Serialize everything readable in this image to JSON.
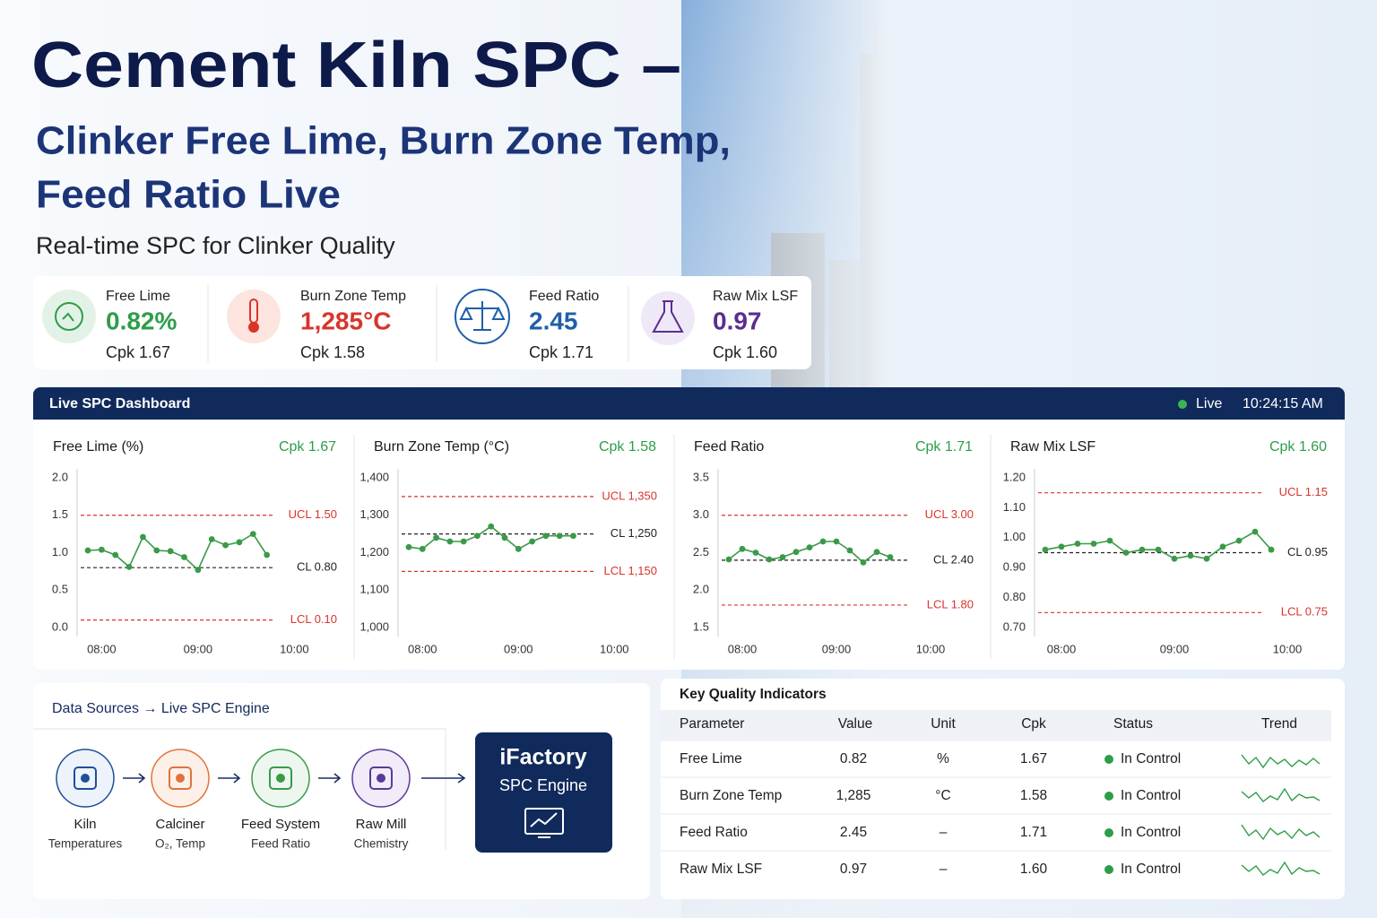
{
  "header": {
    "title": "Cement Kiln SPC –",
    "subtitle_lines": [
      "Clinker Free Lime, Burn Zone Temp,",
      "Feed Ratio Live"
    ],
    "tagline": "Real-time SPC for Clinker Quality"
  },
  "kpis": [
    {
      "label": "Free Lime",
      "value": "0.82%",
      "cpk": "Cpk 1.67",
      "color": "#2e9d4a"
    },
    {
      "label": "Burn Zone Temp",
      "value": "1,285°C",
      "cpk": "Cpk 1.58",
      "color": "#d9342b"
    },
    {
      "label": "Feed Ratio",
      "value": "2.45",
      "cpk": "Cpk 1.71",
      "color": "#1f5fa8"
    },
    {
      "label": "Raw Mix LSF",
      "value": "0.97",
      "cpk": "Cpk 1.60",
      "color": "#5b2d8e"
    }
  ],
  "dashboard": {
    "title": "Live SPC Dashboard",
    "status": "Live",
    "time": "10:24:15 AM"
  },
  "chart_data": [
    {
      "type": "line",
      "title": "Free Lime (%)",
      "cpk": "Cpk 1.67",
      "categories": [
        null,
        "08:00",
        null,
        null,
        null,
        null,
        null,
        null,
        "09:00",
        null,
        null,
        null,
        null,
        null,
        null,
        "10:00"
      ],
      "values": [
        1.03,
        1.04,
        0.97,
        0.81,
        1.21,
        1.03,
        1.02,
        0.94,
        0.77,
        1.18,
        1.1,
        1.14,
        1.25,
        0.97,
        null,
        null
      ],
      "color": "#3a9a48",
      "grid": false,
      "ylim": [
        0,
        2
      ],
      "yticks": [
        {
          "value": 0,
          "label": "0.0"
        },
        0.5,
        {
          "value": 1,
          "label": "1.0"
        },
        1.5,
        {
          "value": 2,
          "label": "2.0"
        }
      ],
      "limits": [
        {
          "value": 1.5,
          "label": "UCL 1.50",
          "color": "#d9342b"
        },
        {
          "value": 0.8,
          "label": "CL 0.80",
          "color": "#222222"
        },
        {
          "value": 0.1,
          "label": "LCL 0.10",
          "color": "#d9342b"
        }
      ]
    },
    {
      "type": "line",
      "title": "Burn Zone Temp (°C)",
      "cpk": "Cpk 1.58",
      "categories": [
        null,
        "08:00",
        null,
        null,
        null,
        null,
        null,
        null,
        "09:00",
        null,
        null,
        null,
        null,
        null,
        null,
        "10:00"
      ],
      "values": [
        1215,
        1210,
        1240,
        1230,
        1230,
        1245,
        1270,
        1240,
        1210,
        1230,
        1245,
        1245,
        1245,
        null,
        null,
        null
      ],
      "color": "#3a9a48",
      "grid": false,
      "ylim": [
        1000,
        1400
      ],
      "yticks": [
        {
          "value": 1000,
          "label": "1,000"
        },
        {
          "value": 1100,
          "label": "1,100"
        },
        {
          "value": 1200,
          "label": "1,200"
        },
        {
          "value": 1300,
          "label": "1,300"
        },
        {
          "value": 1400,
          "label": "1,400"
        }
      ],
      "limits": [
        {
          "value": 1350,
          "label": "UCL 1,350",
          "color": "#d9342b"
        },
        {
          "value": 1250,
          "label": "CL 1,250",
          "color": "#222222"
        },
        {
          "value": 1150,
          "label": "LCL 1,150",
          "color": "#d9342b"
        }
      ]
    },
    {
      "type": "line",
      "title": "Feed Ratio",
      "cpk": "Cpk 1.71",
      "categories": [
        null,
        "08:00",
        null,
        null,
        null,
        null,
        null,
        null,
        "09:00",
        null,
        null,
        null,
        null,
        null,
        null,
        "10:00"
      ],
      "values": [
        2.41,
        2.55,
        2.5,
        2.41,
        2.44,
        2.51,
        2.57,
        2.65,
        2.65,
        2.53,
        2.37,
        2.51,
        2.44,
        null,
        null,
        null
      ],
      "color": "#3a9a48",
      "grid": false,
      "ylim": [
        1.5,
        3.5
      ],
      "yticks": [
        1.5,
        {
          "value": 2,
          "label": "2.0"
        },
        2.5,
        {
          "value": 3,
          "label": "3.0"
        },
        3.5
      ],
      "limits": [
        {
          "value": 3,
          "label": "UCL 3.00",
          "color": "#d9342b"
        },
        {
          "value": 2.4,
          "label": "CL 2.40",
          "color": "#222222"
        },
        {
          "value": 1.8,
          "label": "LCL 1.80",
          "color": "#d9342b"
        }
      ]
    },
    {
      "type": "line",
      "title": "Raw Mix LSF",
      "cpk": "Cpk 1.60",
      "categories": [
        null,
        "08:00",
        null,
        null,
        null,
        null,
        null,
        null,
        "09:00",
        null,
        null,
        null,
        null,
        null,
        null,
        "10:00"
      ],
      "values": [
        0.96,
        0.97,
        0.98,
        0.98,
        0.99,
        0.95,
        0.96,
        0.96,
        0.93,
        0.94,
        0.93,
        0.97,
        0.99,
        1.02,
        0.96,
        null
      ],
      "color": "#3a9a48",
      "grid": false,
      "ylim": [
        0.7,
        1.2
      ],
      "yticks": [
        {
          "value": 0.7,
          "label": "0.70"
        },
        {
          "value": 0.8,
          "label": "0.80"
        },
        {
          "value": 0.9,
          "label": "0.90"
        },
        {
          "value": 1,
          "label": "1.00"
        },
        {
          "value": 1.1,
          "label": "1.10"
        },
        {
          "value": 1.2,
          "label": "1.20"
        }
      ],
      "limits": [
        {
          "value": 1.15,
          "label": "UCL 1.15",
          "color": "#d9342b"
        },
        {
          "value": 0.95,
          "label": "CL 0.95",
          "color": "#222222"
        },
        {
          "value": 0.75,
          "label": "LCL 0.75",
          "color": "#d9342b"
        }
      ]
    }
  ],
  "data_sources": {
    "title": "Data Sources → Live SPC Engine",
    "nodes": [
      {
        "name": "Kiln",
        "detail": "Temperatures"
      },
      {
        "name": "Calciner",
        "detail": "O₂, Temp"
      },
      {
        "name": "Feed System",
        "detail": "Feed Ratio"
      },
      {
        "name": "Raw Mill",
        "detail": "Chemistry"
      }
    ],
    "engine": {
      "name": "iFactory",
      "subtitle": "SPC Engine"
    }
  },
  "table": {
    "title": "Key Quality Indicators",
    "columns": [
      "Parameter",
      "Value",
      "Unit",
      "Cpk",
      "Status",
      "Trend"
    ],
    "rows": [
      [
        "Free Lime",
        "0.82",
        "%",
        "1.67",
        "In Control"
      ],
      [
        "Burn Zone Temp",
        "1,285",
        "°C",
        "1.58",
        "In Control"
      ],
      [
        "Feed Ratio",
        "2.45",
        "–",
        "1.71",
        "In Control"
      ],
      [
        "Raw Mix LSF",
        "0.97",
        "–",
        "1.60",
        "In Control"
      ]
    ]
  }
}
